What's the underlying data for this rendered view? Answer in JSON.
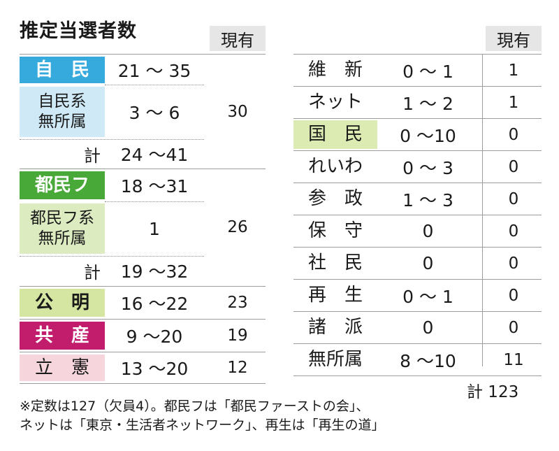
{
  "title": "推定当選者数",
  "header_current": "現有",
  "left": {
    "jimin": {
      "label": "自　民",
      "range": "21 ～ 35",
      "color": "#36a9dd"
    },
    "jimin_kei": {
      "label_line1": "自民系",
      "label_line2": "無所属",
      "range": "3 ～ 6",
      "color": "#cfe9f7"
    },
    "jimin_total": {
      "label": "計",
      "range": "24 ～41"
    },
    "jimin_current": "30",
    "tominf": {
      "label": "都民フ",
      "range": "18 ～31",
      "color": "#48a838"
    },
    "tominf_kei": {
      "label_line1": "都民フ系",
      "label_line2": "無所属",
      "range": "1",
      "color": "#dcebc0"
    },
    "tominf_total": {
      "label": "計",
      "range": "19 ～32"
    },
    "tominf_current": "26",
    "komei": {
      "label": "公　明",
      "range": "16 ～22",
      "current": "23",
      "color": "#d4e6a2"
    },
    "kyosan": {
      "label": "共　産",
      "range": "9 ～20",
      "current": "19",
      "color": "#c21c6d"
    },
    "rikken": {
      "label": "立　憲",
      "range": "13 ～20",
      "current": "12",
      "color": "#f6d6dc"
    }
  },
  "right": [
    {
      "label": "維　新",
      "range": "0 ～ 1",
      "current": "1",
      "highlight": false
    },
    {
      "label": "ネット",
      "range": "1 ～ 2",
      "current": "1",
      "highlight": false
    },
    {
      "label": "国　民",
      "range": "0 ～10",
      "current": "0",
      "highlight": true,
      "color": "#dcebb2"
    },
    {
      "label": "れいわ",
      "range": "0 ～ 3",
      "current": "0",
      "highlight": false
    },
    {
      "label": "参　政",
      "range": "1 ～ 3",
      "current": "0",
      "highlight": false
    },
    {
      "label": "保　守",
      "range": "0",
      "current": "0",
      "highlight": false
    },
    {
      "label": "社　民",
      "range": "0",
      "current": "0",
      "highlight": false
    },
    {
      "label": "再　生",
      "range": "0 ～ 1",
      "current": "0",
      "highlight": false
    },
    {
      "label": "諸　派",
      "range": "0",
      "current": "0",
      "highlight": false
    },
    {
      "label": "無所属",
      "range": "8 ～10",
      "current": "11",
      "highlight": false
    }
  ],
  "grand_total": "計 123",
  "note_line1": "※定数は127（欠員4）。都民フは「都民ファーストの会」、",
  "note_line2": "ネットは「東京・生活者ネットワーク」、再生は「再生の道」"
}
